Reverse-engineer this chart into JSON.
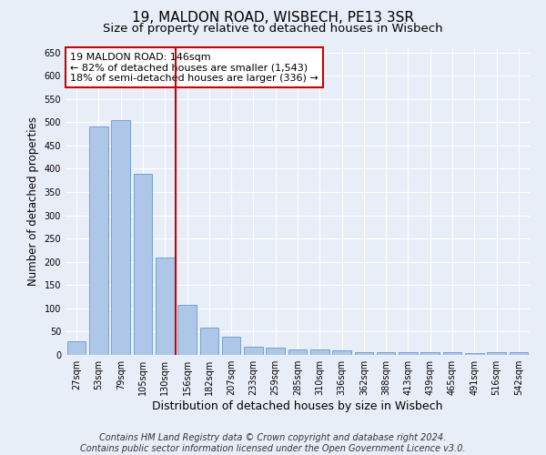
{
  "title": "19, MALDON ROAD, WISBECH, PE13 3SR",
  "subtitle": "Size of property relative to detached houses in Wisbech",
  "xlabel": "Distribution of detached houses by size in Wisbech",
  "ylabel": "Number of detached properties",
  "categories": [
    "27sqm",
    "53sqm",
    "79sqm",
    "105sqm",
    "130sqm",
    "156sqm",
    "182sqm",
    "207sqm",
    "233sqm",
    "259sqm",
    "285sqm",
    "310sqm",
    "336sqm",
    "362sqm",
    "388sqm",
    "413sqm",
    "439sqm",
    "465sqm",
    "491sqm",
    "516sqm",
    "542sqm"
  ],
  "values": [
    30,
    490,
    505,
    390,
    210,
    107,
    59,
    40,
    18,
    15,
    12,
    11,
    10,
    5,
    5,
    5,
    5,
    5,
    3,
    5,
    5
  ],
  "bar_color": "#aec6e8",
  "bar_edge_color": "#6699cc",
  "vline_x": 4.5,
  "vline_color": "#cc0000",
  "ylim": [
    0,
    660
  ],
  "yticks": [
    0,
    50,
    100,
    150,
    200,
    250,
    300,
    350,
    400,
    450,
    500,
    550,
    600,
    650
  ],
  "annotation_line1": "19 MALDON ROAD: 146sqm",
  "annotation_line2": "← 82% of detached houses are smaller (1,543)",
  "annotation_line3": "18% of semi-detached houses are larger (336) →",
  "annotation_box_color": "#ffffff",
  "annotation_box_edge": "#cc0000",
  "footer_line1": "Contains HM Land Registry data © Crown copyright and database right 2024.",
  "footer_line2": "Contains public sector information licensed under the Open Government Licence v3.0.",
  "bg_color": "#e8eef8",
  "plot_bg_color": "#e8eef8",
  "grid_color": "#ffffff",
  "title_fontsize": 11,
  "subtitle_fontsize": 9.5,
  "xlabel_fontsize": 9,
  "ylabel_fontsize": 8.5,
  "tick_fontsize": 7,
  "annotation_fontsize": 8,
  "footer_fontsize": 7
}
